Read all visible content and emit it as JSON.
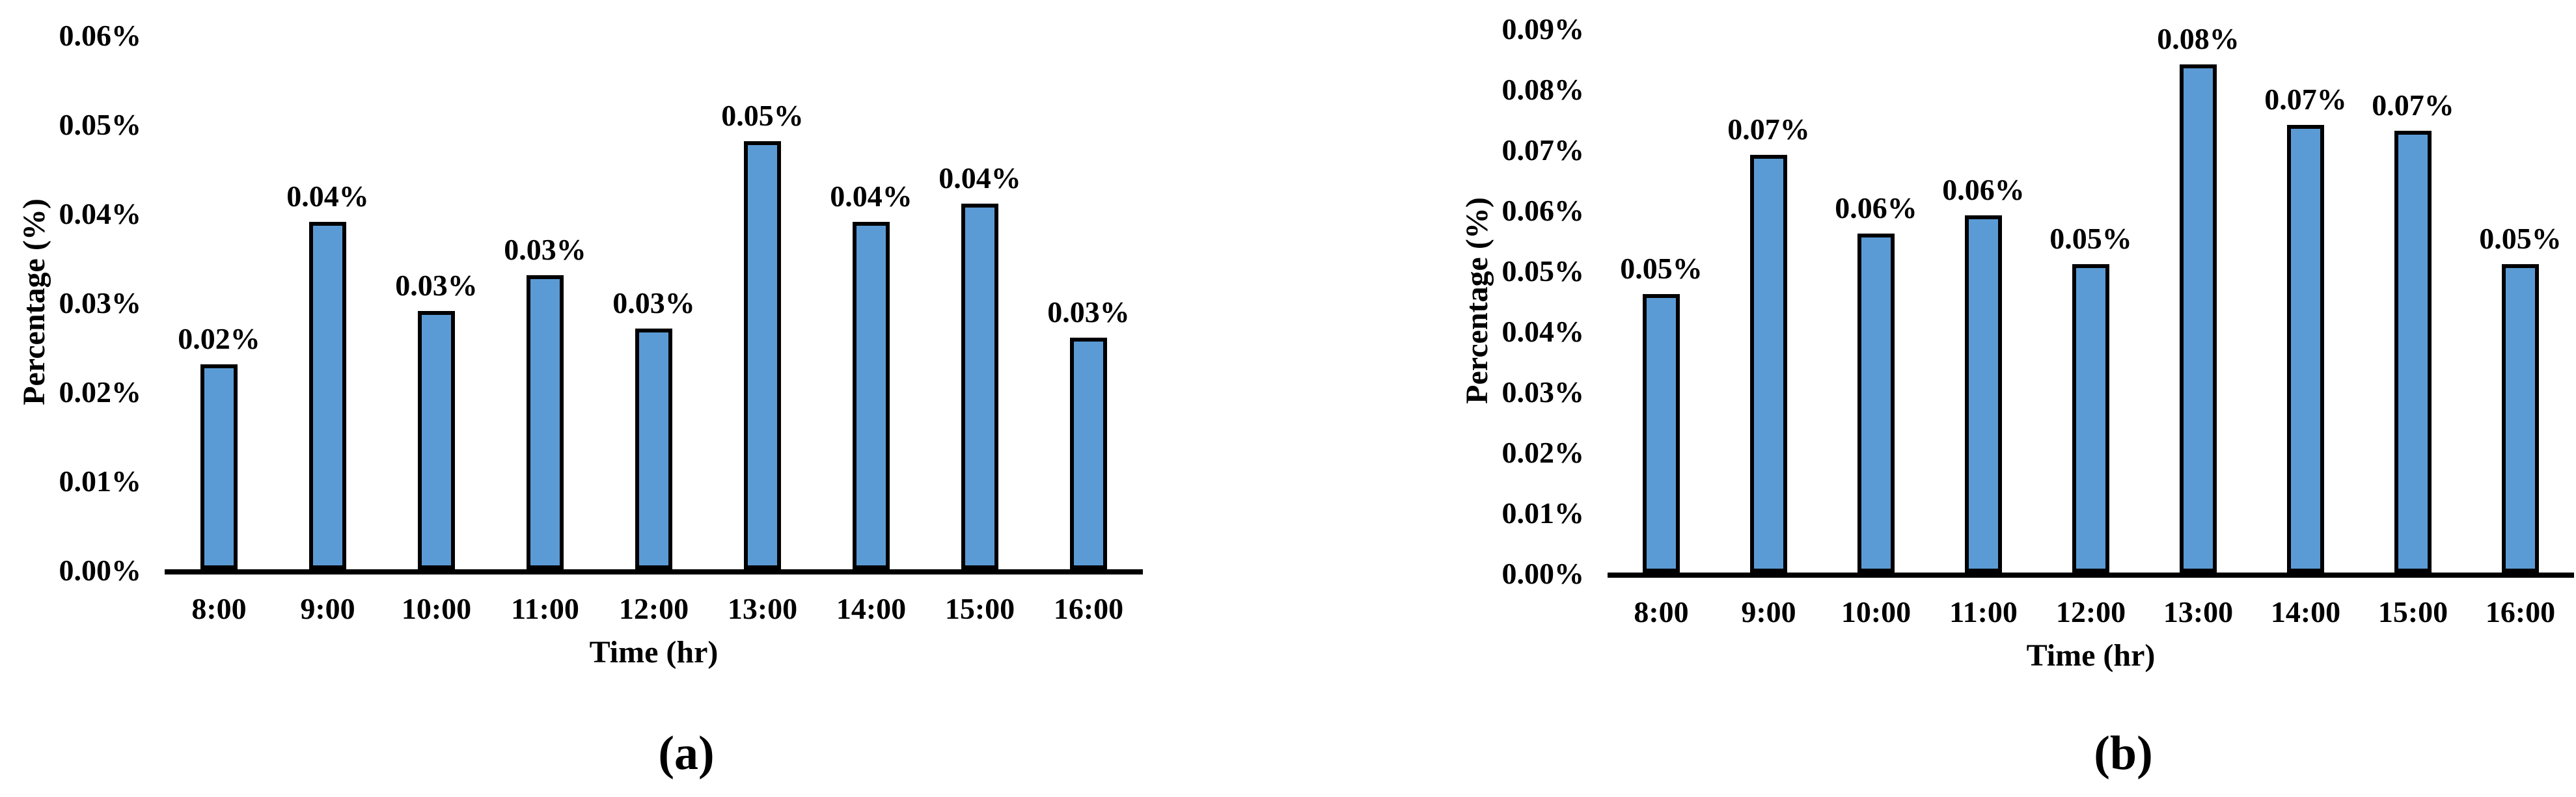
{
  "figure": {
    "background": "#ffffff",
    "text_color": "#000000"
  },
  "chart_data": [
    {
      "type": "bar",
      "caption": "(a)",
      "xlabel": "Time (hr)",
      "ylabel": "Percentage (%)",
      "categories": [
        "8:00",
        "9:00",
        "10:00",
        "11:00",
        "12:00",
        "13:00",
        "14:00",
        "15:00",
        "16:00"
      ],
      "values": [
        0.023,
        0.039,
        0.029,
        0.033,
        0.027,
        0.048,
        0.039,
        0.041,
        0.026
      ],
      "bar_labels": [
        "0.02%",
        "0.04%",
        "0.03%",
        "0.03%",
        "0.03%",
        "0.05%",
        "0.04%",
        "0.04%",
        "0.03%"
      ],
      "ylim": [
        0,
        0.06
      ],
      "ytick_step": 0.01,
      "ytick_labels": [
        "0.00%",
        "0.01%",
        "0.02%",
        "0.03%",
        "0.04%",
        "0.05%",
        "0.06%"
      ],
      "grid": false,
      "legend": "none",
      "bar_color": "#5B9BD5",
      "bar_border_color": "#000000",
      "axis_color": "#000000"
    },
    {
      "type": "bar",
      "caption": "(b)",
      "xlabel": "Time (hr)",
      "ylabel": "Percentage (%)",
      "categories": [
        "8:00",
        "9:00",
        "10:00",
        "11:00",
        "12:00",
        "13:00",
        "14:00",
        "15:00",
        "16:00"
      ],
      "values": [
        0.046,
        0.069,
        0.056,
        0.059,
        0.051,
        0.084,
        0.074,
        0.073,
        0.051
      ],
      "bar_labels": [
        "0.05%",
        "0.07%",
        "0.06%",
        "0.06%",
        "0.05%",
        "0.08%",
        "0.07%",
        "0.07%",
        "0.05%"
      ],
      "ylim": [
        0,
        0.09
      ],
      "ytick_step": 0.01,
      "ytick_labels": [
        "0.00%",
        "0.01%",
        "0.02%",
        "0.03%",
        "0.04%",
        "0.05%",
        "0.06%",
        "0.07%",
        "0.08%",
        "0.09%"
      ],
      "grid": false,
      "legend": "none",
      "bar_color": "#5B9BD5",
      "bar_border_color": "#000000",
      "axis_color": "#000000"
    }
  ]
}
